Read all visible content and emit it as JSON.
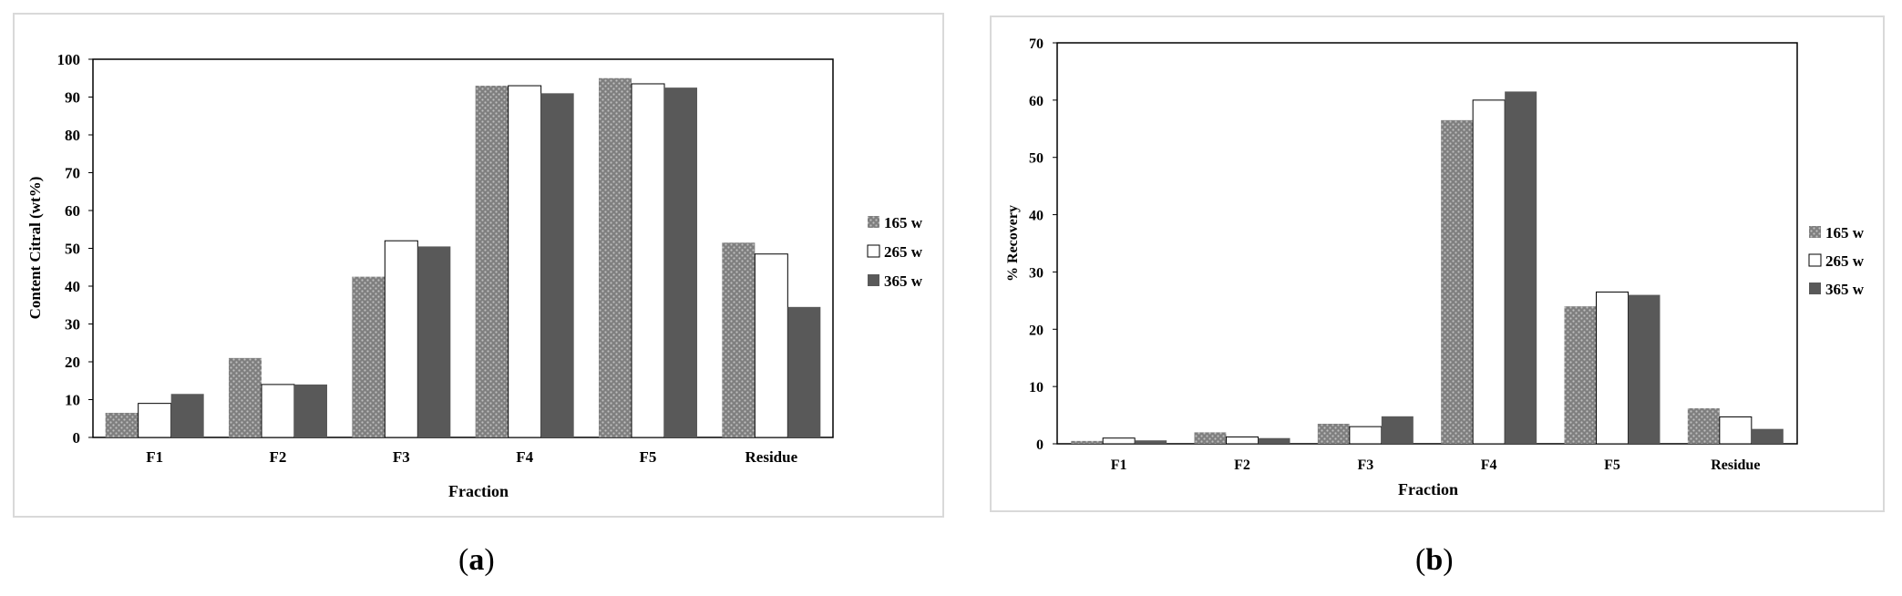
{
  "colors": {
    "s165": "#8c8c8c",
    "s265": "#ffffff",
    "s365": "#595959",
    "frame": "#d9d9d9",
    "axis": "#000000"
  },
  "charts": [
    {
      "label": "a",
      "chart_data": {
        "type": "bar",
        "categories": [
          "F1",
          "F2",
          "F3",
          "F4",
          "F5",
          "Residue"
        ],
        "series": [
          {
            "name": "165 w",
            "pattern": "dotted-gray",
            "values": [
              6.5,
              21,
              42.5,
              93,
              95,
              51.5
            ]
          },
          {
            "name": "265 w",
            "pattern": "white",
            "values": [
              9,
              14,
              52,
              93,
              93.5,
              48.5
            ]
          },
          {
            "name": "365 w",
            "pattern": "dark-gray",
            "values": [
              11.5,
              14,
              50.5,
              91,
              92.5,
              34.5
            ]
          }
        ],
        "xlabel": "Fraction",
        "ylabel": "Content Citral (wt%)",
        "ylim": [
          0,
          100
        ],
        "yticks": [
          0,
          10,
          20,
          30,
          40,
          50,
          60,
          70,
          80,
          90,
          100
        ],
        "legend": "right"
      }
    },
    {
      "label": "b",
      "chart_data": {
        "type": "bar",
        "categories": [
          "F1",
          "F2",
          "F3",
          "F4",
          "F5",
          "Residue"
        ],
        "series": [
          {
            "name": "165 w",
            "pattern": "dotted-gray",
            "values": [
              0.5,
              2,
              3.5,
              56.5,
              24,
              6.2
            ]
          },
          {
            "name": "265 w",
            "pattern": "white",
            "values": [
              1,
              1.2,
              3,
              60,
              26.5,
              4.7
            ]
          },
          {
            "name": "365 w",
            "pattern": "dark-gray",
            "values": [
              0.6,
              1,
              4.8,
              61.5,
              26,
              2.6
            ]
          }
        ],
        "xlabel": "Fraction",
        "ylabel": "% Recovery",
        "ylim": [
          0,
          70
        ],
        "yticks": [
          0,
          10,
          20,
          30,
          40,
          50,
          60,
          70
        ],
        "legend": "right"
      }
    }
  ]
}
